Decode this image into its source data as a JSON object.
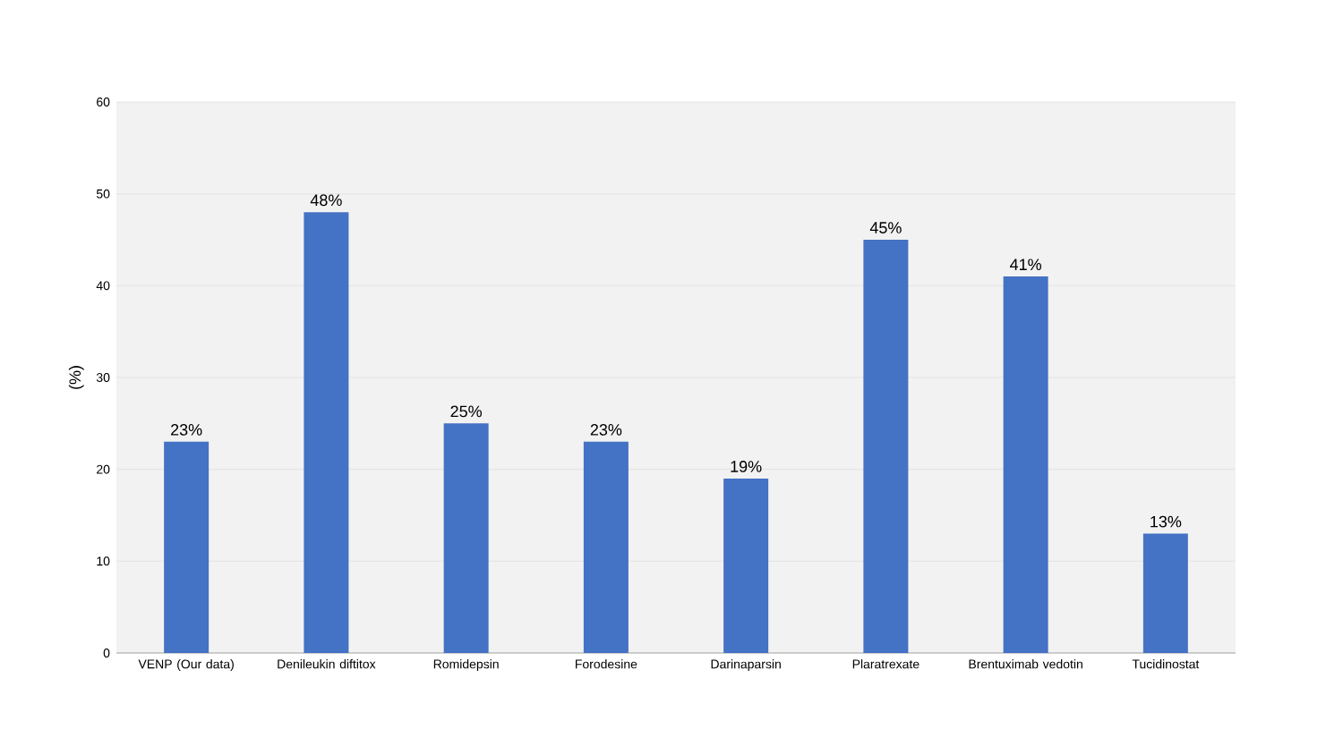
{
  "chart_data": {
    "type": "bar",
    "ylabel": "(%)",
    "categories": [
      "VENP (Our data)",
      "Denileukin diftitox",
      "Romidepsin",
      "Forodesine",
      "Darinaparsin",
      "Plaratrexate",
      "Brentuximab vedotin",
      "Tucidinostat"
    ],
    "values": [
      23,
      48,
      25,
      23,
      19,
      45,
      41,
      13
    ],
    "value_labels": [
      "23%",
      "48%",
      "25%",
      "23%",
      "19%",
      "45%",
      "41%",
      "13%"
    ],
    "color": "#4472c4",
    "ylim": [
      0,
      60
    ],
    "yticks": [
      0,
      10,
      20,
      30,
      40,
      50,
      60
    ],
    "grid": "y"
  }
}
